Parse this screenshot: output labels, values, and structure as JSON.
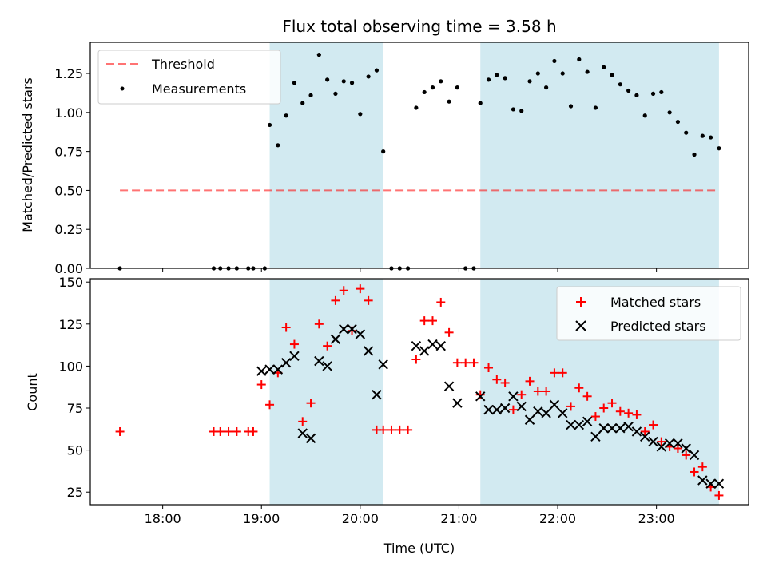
{
  "title": "Flux total observing time = 3.58 h",
  "colors": {
    "shade": "#add8e6",
    "threshold": "#ff0000",
    "measurement": "#000000",
    "matched": "#ff0000",
    "predicted": "#000000"
  },
  "chart_data": [
    {
      "type": "scatter",
      "name": "ratio",
      "ylabel": "Matched/Predicted stars",
      "xlim": [
        "17:16",
        "23:56"
      ],
      "ylim": [
        0,
        1.45
      ],
      "yticks": [
        "0.00",
        "0.25",
        "0.50",
        "0.75",
        "1.00",
        "1.25"
      ],
      "xticks": [
        "18:00",
        "19:00",
        "20:00",
        "21:00",
        "22:00",
        "23:00"
      ],
      "shaded_intervals": [
        [
          "19:05",
          "20:14"
        ],
        [
          "21:13",
          "23:38"
        ]
      ],
      "threshold": {
        "label": "Threshold",
        "y": 0.5,
        "x_start": "17:34",
        "x_end": "23:38"
      },
      "legend": {
        "position": "top-left",
        "entries": [
          "Threshold",
          "Measurements"
        ]
      },
      "series": [
        {
          "name": "Measurements",
          "x": [
            "17:34",
            "18:31",
            "18:35",
            "18:40",
            "18:45",
            "18:52",
            "18:55",
            "19:02",
            "19:05",
            "19:10",
            "19:15",
            "19:20",
            "19:25",
            "19:30",
            "19:35",
            "19:40",
            "19:45",
            "19:50",
            "19:55",
            "20:00",
            "20:05",
            "20:10",
            "20:14",
            "20:19",
            "20:24",
            "20:29",
            "20:34",
            "20:39",
            "20:44",
            "20:49",
            "20:54",
            "20:59",
            "21:04",
            "21:09",
            "21:13",
            "21:18",
            "21:23",
            "21:28",
            "21:33",
            "21:38",
            "21:43",
            "21:48",
            "21:53",
            "21:58",
            "22:03",
            "22:08",
            "22:13",
            "22:18",
            "22:23",
            "22:28",
            "22:33",
            "22:38",
            "22:43",
            "22:48",
            "22:53",
            "22:58",
            "23:03",
            "23:08",
            "23:13",
            "23:18",
            "23:23",
            "23:28",
            "23:33",
            "23:38"
          ],
          "y": [
            0,
            0,
            0,
            0,
            0,
            0,
            0,
            0,
            0.92,
            0.79,
            0.98,
            1.19,
            1.06,
            1.11,
            1.37,
            1.21,
            1.12,
            1.2,
            1.19,
            0.99,
            1.23,
            1.27,
            0.75,
            0,
            0,
            0,
            1.03,
            1.13,
            1.16,
            1.2,
            1.07,
            1.16,
            0,
            0,
            1.06,
            1.21,
            1.24,
            1.22,
            1.02,
            1.01,
            1.2,
            1.25,
            1.16,
            1.33,
            1.25,
            1.04,
            1.34,
            1.26,
            1.03,
            1.29,
            1.24,
            1.18,
            1.14,
            1.11,
            0.98,
            1.12,
            1.13,
            1.0,
            0.94,
            0.87,
            0.73,
            0.85,
            0.84,
            0.77
          ]
        }
      ]
    },
    {
      "type": "scatter",
      "name": "count",
      "ylabel": "Count",
      "xlabel": "Time (UTC)",
      "xlim": [
        "17:16",
        "23:56"
      ],
      "ylim": [
        17.5,
        152
      ],
      "yticks": [
        "25",
        "50",
        "75",
        "100",
        "125",
        "150"
      ],
      "xticks": [
        "18:00",
        "19:00",
        "20:00",
        "21:00",
        "22:00",
        "23:00"
      ],
      "shaded_intervals": [
        [
          "19:05",
          "20:14"
        ],
        [
          "21:13",
          "23:38"
        ]
      ],
      "legend": {
        "position": "top-right",
        "entries": [
          "Matched stars",
          "Predicted stars"
        ]
      },
      "series": [
        {
          "name": "Matched stars",
          "x": [
            "17:34",
            "18:31",
            "18:35",
            "18:40",
            "18:45",
            "18:52",
            "18:55",
            "19:00",
            "19:05",
            "19:10",
            "19:15",
            "19:20",
            "19:25",
            "19:30",
            "19:35",
            "19:40",
            "19:45",
            "19:50",
            "19:55",
            "20:00",
            "20:05",
            "20:10",
            "20:14",
            "20:19",
            "20:24",
            "20:29",
            "20:34",
            "20:39",
            "20:44",
            "20:49",
            "20:54",
            "20:59",
            "21:04",
            "21:09",
            "21:13",
            "21:18",
            "21:23",
            "21:28",
            "21:33",
            "21:38",
            "21:43",
            "21:48",
            "21:53",
            "21:58",
            "22:03",
            "22:08",
            "22:13",
            "22:18",
            "22:23",
            "22:28",
            "22:33",
            "22:38",
            "22:43",
            "22:48",
            "22:53",
            "22:58",
            "23:03",
            "23:08",
            "23:13",
            "23:18",
            "23:23",
            "23:28",
            "23:33",
            "23:38"
          ],
          "y": [
            61,
            61,
            61,
            61,
            61,
            61,
            61,
            89,
            77,
            96,
            123,
            113,
            67,
            78,
            125,
            112,
            139,
            145,
            121,
            146,
            139,
            62,
            62,
            62,
            62,
            62,
            104,
            127,
            127,
            138,
            120,
            102,
            102,
            102,
            83,
            99,
            92,
            90,
            74,
            83,
            91,
            85,
            85,
            96,
            96,
            76,
            87,
            82,
            70,
            75,
            78,
            73,
            72,
            71,
            61,
            65,
            55,
            52,
            51,
            47,
            37,
            40,
            28,
            23
          ]
        },
        {
          "name": "Predicted stars",
          "x": [
            "19:00",
            "19:05",
            "19:10",
            "19:15",
            "19:20",
            "19:25",
            "19:30",
            "19:35",
            "19:40",
            "19:45",
            "19:50",
            "19:55",
            "20:00",
            "20:05",
            "20:10",
            "20:14",
            "20:34",
            "20:39",
            "20:44",
            "20:49",
            "20:54",
            "20:59",
            "21:13",
            "21:18",
            "21:23",
            "21:28",
            "21:33",
            "21:38",
            "21:43",
            "21:48",
            "21:53",
            "21:58",
            "22:03",
            "22:08",
            "22:13",
            "22:18",
            "22:23",
            "22:28",
            "22:33",
            "22:38",
            "22:43",
            "22:48",
            "22:53",
            "22:58",
            "23:03",
            "23:08",
            "23:13",
            "23:18",
            "23:23",
            "23:28",
            "23:33",
            "23:38"
          ],
          "y": [
            97,
            98,
            98,
            102,
            106,
            60,
            57,
            103,
            100,
            116,
            122,
            122,
            119,
            109,
            83,
            101,
            112,
            109,
            113,
            112,
            88,
            78,
            82,
            74,
            74,
            75,
            82,
            76,
            68,
            73,
            72,
            77,
            72,
            65,
            65,
            67,
            58,
            63,
            63,
            63,
            64,
            61,
            58,
            55,
            52,
            54,
            54,
            51,
            47,
            32,
            30,
            30
          ]
        }
      ]
    }
  ]
}
